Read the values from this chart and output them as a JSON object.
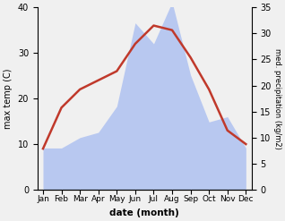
{
  "months": [
    "Jan",
    "Feb",
    "Mar",
    "Apr",
    "May",
    "Jun",
    "Jul",
    "Aug",
    "Sep",
    "Oct",
    "Nov",
    "Dec"
  ],
  "month_indices": [
    0,
    1,
    2,
    3,
    4,
    5,
    6,
    7,
    8,
    9,
    10,
    11
  ],
  "temperature": [
    9,
    18,
    22,
    24,
    26,
    32,
    36,
    35,
    29,
    22,
    13,
    10
  ],
  "precipitation": [
    8,
    8,
    10,
    11,
    16,
    32,
    28,
    36,
    22,
    13,
    14,
    8
  ],
  "temp_color": "#c0392b",
  "precip_color": "#b8c8f0",
  "temp_ylim": [
    0,
    40
  ],
  "precip_ylim": [
    0,
    35
  ],
  "temp_yticks": [
    0,
    10,
    20,
    30,
    40
  ],
  "precip_yticks": [
    0,
    5,
    10,
    15,
    20,
    25,
    30,
    35
  ],
  "xlabel": "date (month)",
  "ylabel_left": "max temp (C)",
  "ylabel_right": "med. precipitation (kg/m2)",
  "background_color": "#f0f0f0",
  "line_width": 1.8
}
